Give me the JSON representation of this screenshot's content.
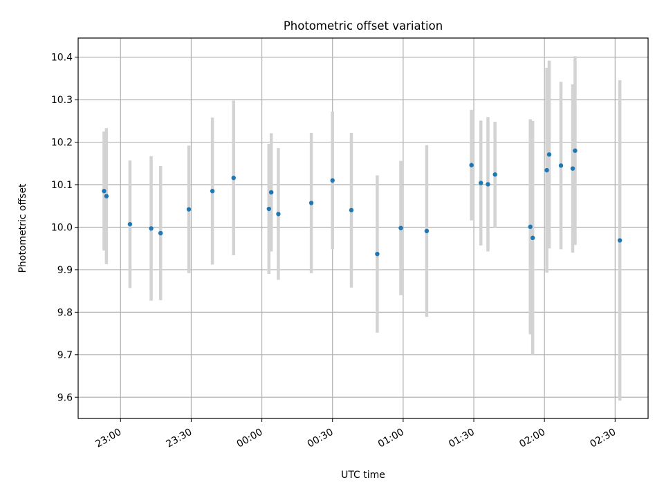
{
  "chart_data": {
    "type": "scatter",
    "title": "Photometric offset variation",
    "xlabel": "UTC time",
    "ylabel": "Photometric offset",
    "x_ticks": [
      "23:00",
      "23:30",
      "00:00",
      "00:30",
      "01:00",
      "01:30",
      "02:00",
      "02:30"
    ],
    "x_tick_times": [
      "2000-01-01T23:00",
      "2000-01-01T23:30",
      "2000-01-02T00:00",
      "2000-01-02T00:30",
      "2000-01-02T01:00",
      "2000-01-02T01:30",
      "2000-01-02T02:00",
      "2000-01-02T02:30"
    ],
    "xlim": [
      "2000-01-01T22:42",
      "2000-01-02T02:44"
    ],
    "y_ticks": [
      "9.6",
      "9.7",
      "9.8",
      "9.9",
      "10.0",
      "10.1",
      "10.2",
      "10.3",
      "10.4"
    ],
    "ylim": [
      9.55,
      10.445
    ],
    "grid": true,
    "marker_color": "#1f77b4",
    "errorbar_color": "#d3d3d3",
    "points": [
      {
        "t": "2000-01-01T22:53",
        "y": 10.085,
        "lo": 9.945,
        "hi": 10.225
      },
      {
        "t": "2000-01-01T22:54",
        "y": 10.073,
        "lo": 9.913,
        "hi": 10.233
      },
      {
        "t": "2000-01-01T23:04",
        "y": 10.007,
        "lo": 9.857,
        "hi": 10.157
      },
      {
        "t": "2000-01-01T23:13",
        "y": 9.997,
        "lo": 9.827,
        "hi": 10.167
      },
      {
        "t": "2000-01-01T23:17",
        "y": 9.986,
        "lo": 9.828,
        "hi": 10.144
      },
      {
        "t": "2000-01-01T23:29",
        "y": 10.042,
        "lo": 9.892,
        "hi": 10.192
      },
      {
        "t": "2000-01-01T23:39",
        "y": 10.085,
        "lo": 9.912,
        "hi": 10.258
      },
      {
        "t": "2000-01-01T23:48",
        "y": 10.116,
        "lo": 9.934,
        "hi": 10.298
      },
      {
        "t": "2000-01-02T00:03",
        "y": 10.043,
        "lo": 9.89,
        "hi": 10.196
      },
      {
        "t": "2000-01-02T00:04",
        "y": 10.082,
        "lo": 9.943,
        "hi": 10.221
      },
      {
        "t": "2000-01-02T00:07",
        "y": 10.031,
        "lo": 9.876,
        "hi": 10.186
      },
      {
        "t": "2000-01-02T00:21",
        "y": 10.057,
        "lo": 9.892,
        "hi": 10.222
      },
      {
        "t": "2000-01-02T00:30",
        "y": 10.11,
        "lo": 9.948,
        "hi": 10.272
      },
      {
        "t": "2000-01-02T00:38",
        "y": 10.04,
        "lo": 9.858,
        "hi": 10.222
      },
      {
        "t": "2000-01-02T00:49",
        "y": 9.937,
        "lo": 9.752,
        "hi": 10.122
      },
      {
        "t": "2000-01-02T00:59",
        "y": 9.998,
        "lo": 9.84,
        "hi": 10.156
      },
      {
        "t": "2000-01-02T01:10",
        "y": 9.991,
        "lo": 9.789,
        "hi": 10.193
      },
      {
        "t": "2000-01-02T01:29",
        "y": 10.146,
        "lo": 10.016,
        "hi": 10.276
      },
      {
        "t": "2000-01-02T01:33",
        "y": 10.104,
        "lo": 9.957,
        "hi": 10.251
      },
      {
        "t": "2000-01-02T01:36",
        "y": 10.101,
        "lo": 9.943,
        "hi": 10.259
      },
      {
        "t": "2000-01-02T01:39",
        "y": 10.124,
        "lo": 10.0,
        "hi": 10.248
      },
      {
        "t": "2000-01-02T01:54",
        "y": 10.001,
        "lo": 9.748,
        "hi": 10.254
      },
      {
        "t": "2000-01-02T01:55",
        "y": 9.975,
        "lo": 9.7,
        "hi": 10.25
      },
      {
        "t": "2000-01-02T02:01",
        "y": 10.134,
        "lo": 9.893,
        "hi": 10.375
      },
      {
        "t": "2000-01-02T02:02",
        "y": 10.171,
        "lo": 9.95,
        "hi": 10.392
      },
      {
        "t": "2000-01-02T02:07",
        "y": 10.145,
        "lo": 9.948,
        "hi": 10.342
      },
      {
        "t": "2000-01-02T02:12",
        "y": 10.138,
        "lo": 9.94,
        "hi": 10.336
      },
      {
        "t": "2000-01-02T02:13",
        "y": 10.18,
        "lo": 9.958,
        "hi": 10.402
      },
      {
        "t": "2000-01-02T02:32",
        "y": 9.969,
        "lo": 9.592,
        "hi": 10.346
      }
    ]
  }
}
